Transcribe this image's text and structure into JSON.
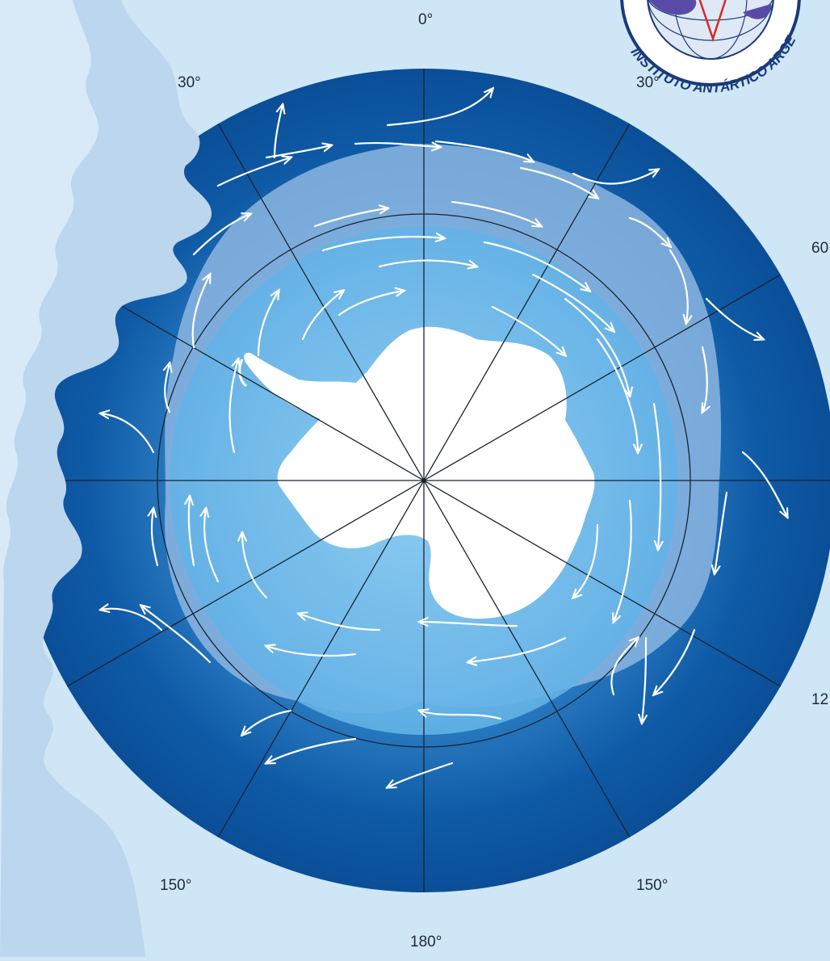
{
  "labels": {
    "lon_0": "0°",
    "lon_30_left": "30°",
    "lon_30_right": "30°",
    "lon_60": "60",
    "lon_120": "12",
    "lon_150_left": "150°",
    "lon_150_right": "150°",
    "lon_180": "180°"
  },
  "logo": {
    "text": "INSTITUTO ANTÁRTICO ARGENTINO"
  },
  "colors": {
    "background": "#cfe6f6",
    "ocean_inner": "#5fb0e6",
    "ocean_outer": "#0a4d96",
    "sea_ice": "#8cb6e0",
    "land": "#ffffff",
    "grid": "#1b2330",
    "arrows": "#ffffff"
  },
  "legend": {
    "arrows": "wind/current direction",
    "ice_band": "sea ice extent"
  }
}
